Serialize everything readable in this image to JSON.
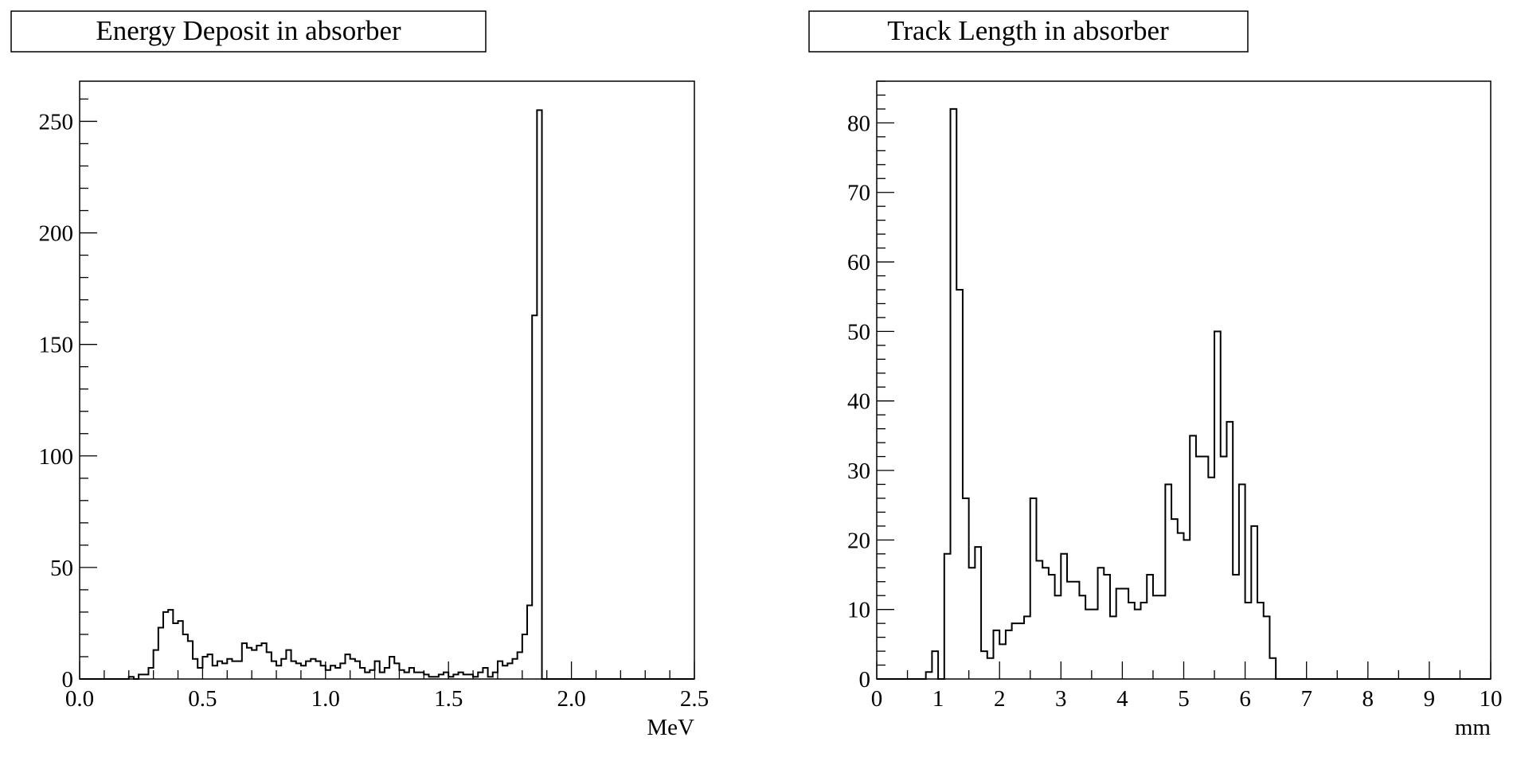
{
  "chart_data": [
    {
      "type": "histogram",
      "title": "Energy Deposit in absorber",
      "xlabel": "MeV",
      "ylabel": "",
      "xlim": [
        0,
        2.5
      ],
      "ylim": [
        0,
        268
      ],
      "bin_width": 0.02,
      "x_start": 0.0,
      "x_ticks": [
        "0.0",
        "0.5",
        "1.0",
        "1.5",
        "2.0",
        "2.5"
      ],
      "x_tick_values": [
        0,
        0.5,
        1.0,
        1.5,
        2.0,
        2.5
      ],
      "y_ticks": [
        "0",
        "50",
        "100",
        "150",
        "200",
        "250"
      ],
      "y_tick_values": [
        0,
        50,
        100,
        150,
        200,
        250
      ],
      "values": [
        0,
        0,
        0,
        0,
        0,
        0,
        0,
        0,
        0,
        0,
        1,
        0,
        2,
        2,
        5,
        13,
        23,
        30,
        31,
        25,
        26,
        20,
        17,
        9,
        5,
        10,
        11,
        6,
        8,
        7,
        9,
        8,
        8,
        16,
        14,
        13,
        15,
        16,
        12,
        8,
        6,
        9,
        13,
        8,
        7,
        6,
        8,
        9,
        8,
        6,
        4,
        6,
        5,
        7,
        11,
        9,
        8,
        5,
        3,
        4,
        8,
        3,
        5,
        10,
        7,
        4,
        3,
        5,
        3,
        3,
        2,
        1,
        1,
        2,
        3,
        1,
        2,
        3,
        2,
        2,
        1,
        3,
        5,
        1,
        3,
        8,
        6,
        7,
        9,
        12,
        20,
        33,
        163,
        255,
        0,
        0,
        0,
        0,
        0,
        0,
        0,
        0,
        0,
        0,
        0,
        0,
        0,
        0,
        0,
        0,
        0,
        0,
        0,
        0,
        0,
        0,
        0,
        0,
        0,
        0,
        0,
        0,
        0,
        0,
        0
      ]
    },
    {
      "type": "histogram",
      "title": "Track Length in absorber",
      "xlabel": "mm",
      "ylabel": "",
      "xlim": [
        0,
        10
      ],
      "ylim": [
        0,
        86
      ],
      "bin_width": 0.1,
      "x_start": 0.0,
      "x_ticks": [
        "0",
        "1",
        "2",
        "3",
        "4",
        "5",
        "6",
        "7",
        "8",
        "9",
        "10"
      ],
      "x_tick_values": [
        0,
        1,
        2,
        3,
        4,
        5,
        6,
        7,
        8,
        9,
        10
      ],
      "y_ticks": [
        "0",
        "10",
        "20",
        "30",
        "40",
        "50",
        "60",
        "70",
        "80"
      ],
      "y_tick_values": [
        0,
        10,
        20,
        30,
        40,
        50,
        60,
        70,
        80
      ],
      "values": [
        0,
        0,
        0,
        0,
        0,
        0,
        0,
        0,
        1,
        4,
        0,
        18,
        82,
        56,
        26,
        16,
        19,
        4,
        3,
        7,
        5,
        7,
        8,
        8,
        9,
        26,
        17,
        16,
        15,
        12,
        18,
        14,
        14,
        12,
        10,
        10,
        16,
        15,
        9,
        13,
        13,
        11,
        10,
        11,
        15,
        12,
        12,
        28,
        23,
        21,
        20,
        35,
        32,
        32,
        29,
        50,
        32,
        37,
        15,
        28,
        11,
        22,
        11,
        9,
        3,
        0,
        0,
        0,
        0,
        0,
        0,
        0,
        0,
        0,
        0,
        0,
        0,
        0,
        0,
        0,
        0,
        0,
        0,
        0,
        0,
        0,
        0,
        0,
        0,
        0,
        0,
        0,
        0,
        0,
        0,
        0,
        0,
        0,
        0,
        0
      ]
    }
  ]
}
